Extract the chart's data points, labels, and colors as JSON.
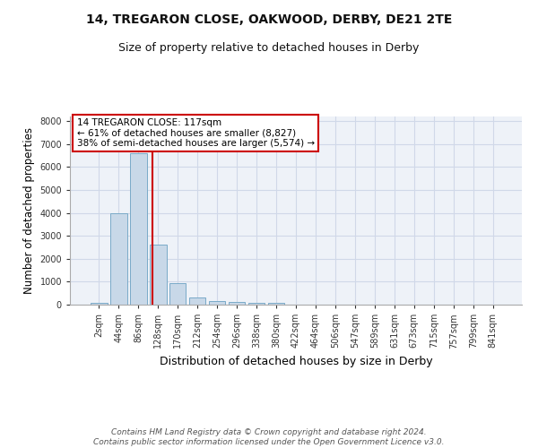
{
  "title1": "14, TREGARON CLOSE, OAKWOOD, DERBY, DE21 2TE",
  "title2": "Size of property relative to detached houses in Derby",
  "xlabel": "Distribution of detached houses by size in Derby",
  "ylabel": "Number of detached properties",
  "categories": [
    "2sqm",
    "44sqm",
    "86sqm",
    "128sqm",
    "170sqm",
    "212sqm",
    "254sqm",
    "296sqm",
    "338sqm",
    "380sqm",
    "422sqm",
    "464sqm",
    "506sqm",
    "547sqm",
    "589sqm",
    "631sqm",
    "673sqm",
    "715sqm",
    "757sqm",
    "799sqm",
    "841sqm"
  ],
  "values": [
    80,
    4000,
    6600,
    2620,
    950,
    320,
    150,
    100,
    70,
    70,
    0,
    0,
    0,
    0,
    0,
    0,
    0,
    0,
    0,
    0,
    0
  ],
  "bar_color": "#c8d8e8",
  "bar_edge_color": "#7aaac8",
  "grid_color": "#d0d8e8",
  "background_color": "#eef2f8",
  "vline_color": "#cc0000",
  "annotation_text": "14 TREGARON CLOSE: 117sqm\n← 61% of detached houses are smaller (8,827)\n38% of semi-detached houses are larger (5,574) →",
  "annotation_box_color": "#cc0000",
  "ylim": [
    0,
    8200
  ],
  "yticks": [
    0,
    1000,
    2000,
    3000,
    4000,
    5000,
    6000,
    7000,
    8000
  ],
  "footer": "Contains HM Land Registry data © Crown copyright and database right 2024.\nContains public sector information licensed under the Open Government Licence v3.0.",
  "title_fontsize": 10,
  "subtitle_fontsize": 9,
  "tick_fontsize": 7,
  "ylabel_fontsize": 8.5,
  "xlabel_fontsize": 9,
  "footer_fontsize": 6.5
}
